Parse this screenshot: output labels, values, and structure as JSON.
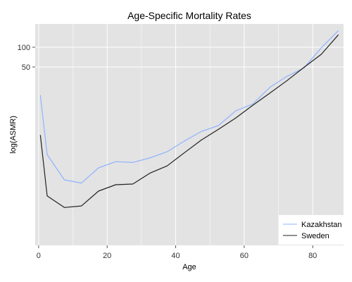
{
  "chart_data": {
    "type": "line",
    "title": "Age-Specific Mortality Rates",
    "xlabel": "Age",
    "ylabel": "log(ASMR)",
    "x_scale": "linear",
    "y_scale": "log",
    "xlim": [
      -1,
      89
    ],
    "x_ticks": [
      0,
      20,
      40,
      60,
      80
    ],
    "y_ticks": [
      50,
      100
    ],
    "grid": true,
    "legend_position": "bottom-right",
    "x": [
      0.5,
      2.5,
      7.5,
      12.5,
      17.5,
      22.5,
      27.5,
      32.5,
      37.5,
      42.5,
      47.5,
      52.5,
      57.5,
      62.5,
      67.5,
      72.5,
      77.5,
      82.5,
      87.5
    ],
    "series": [
      {
        "name": "Kazakhstan",
        "color": "#8fb3ff",
        "values": [
          18.6,
          2.3,
          0.95,
          0.85,
          1.45,
          1.8,
          1.75,
          2.05,
          2.55,
          3.7,
          5.2,
          6.4,
          10.7,
          13.6,
          24.5,
          36.0,
          48.5,
          98.0,
          180.0
        ]
      },
      {
        "name": "Sweden",
        "color": "#222222",
        "values": [
          4.6,
          0.54,
          0.36,
          0.38,
          0.64,
          0.8,
          0.82,
          1.2,
          1.55,
          2.45,
          3.85,
          5.6,
          8.3,
          13.0,
          20.0,
          31.0,
          49.5,
          78.0,
          155.0
        ]
      }
    ]
  },
  "colors": {
    "panel_background": "#e3e3e3",
    "grid": "#ffffff"
  }
}
